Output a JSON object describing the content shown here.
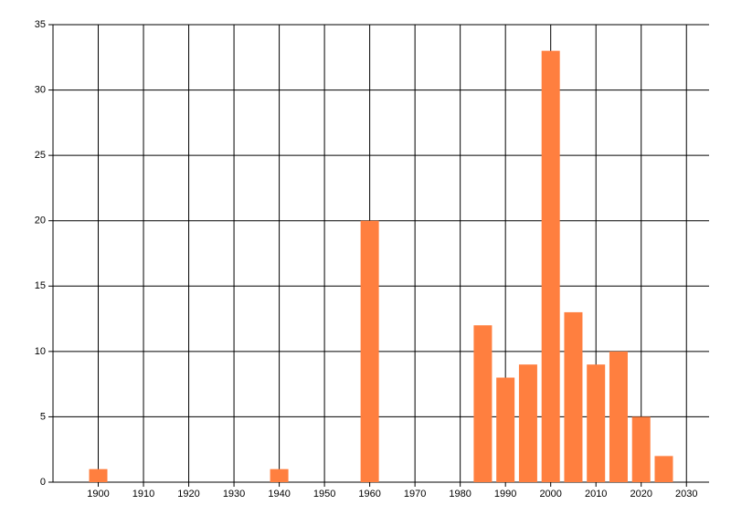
{
  "chart_data": {
    "type": "bar",
    "x": [
      1900,
      1940,
      1960,
      1985,
      1990,
      1995,
      2000,
      2005,
      2010,
      2015,
      2020,
      2025
    ],
    "values": [
      1,
      1,
      20,
      12,
      8,
      9,
      33,
      13,
      9,
      10,
      5,
      2
    ],
    "color": "#ff7f3f",
    "xlim": [
      1890,
      2035
    ],
    "xticks": [
      1900,
      1910,
      1920,
      1930,
      1940,
      1950,
      1960,
      1970,
      1980,
      1990,
      2000,
      2010,
      2020,
      2030
    ],
    "ylim": [
      0,
      35
    ],
    "yticks": [
      0,
      5,
      10,
      15,
      20,
      25,
      30,
      35
    ],
    "grid": true
  }
}
